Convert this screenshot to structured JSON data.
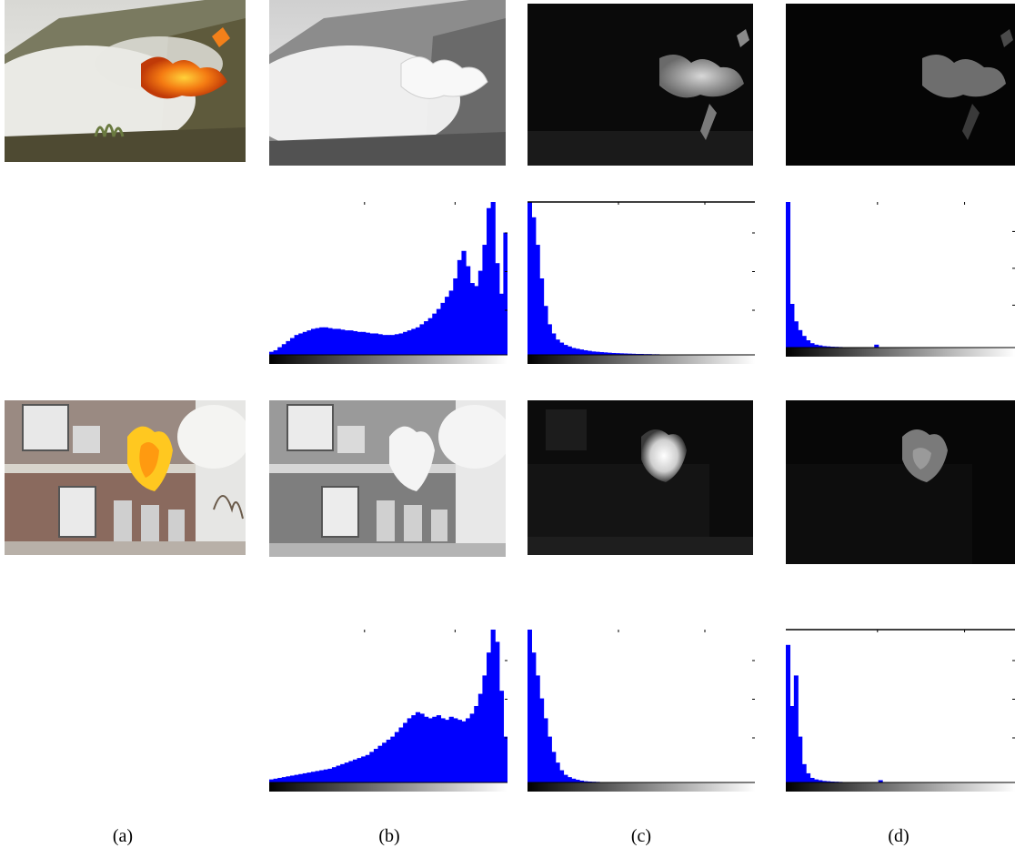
{
  "figure": {
    "captions": [
      "(a)",
      "(b)",
      "(c)",
      "(d)"
    ]
  },
  "palette": {
    "histogram_fill": "#0000ff",
    "axis": "#000000",
    "gradient_dark": "#000000",
    "gradient_light": "#ffffff"
  },
  "rows": [
    {
      "scene": "grassland-fire",
      "original_icon": "grassland-fire-photo",
      "gray_icon": "grassland-fire-gray-image",
      "feature_c_icon": "grassland-fire-feature-map-c",
      "feature_d_icon": "grassland-fire-feature-map-d",
      "hist_b": [
        0.02,
        0.03,
        0.05,
        0.07,
        0.09,
        0.11,
        0.13,
        0.14,
        0.15,
        0.16,
        0.17,
        0.175,
        0.18,
        0.18,
        0.175,
        0.17,
        0.17,
        0.165,
        0.16,
        0.16,
        0.155,
        0.15,
        0.15,
        0.145,
        0.14,
        0.14,
        0.135,
        0.13,
        0.13,
        0.13,
        0.135,
        0.14,
        0.15,
        0.16,
        0.17,
        0.18,
        0.2,
        0.22,
        0.24,
        0.27,
        0.3,
        0.34,
        0.38,
        0.42,
        0.5,
        0.62,
        0.68,
        0.58,
        0.47,
        0.45,
        0.55,
        0.72,
        0.96,
        1.0,
        0.6,
        0.4,
        0.8
      ],
      "hist_c": [
        1.0,
        0.9,
        0.72,
        0.5,
        0.32,
        0.2,
        0.14,
        0.1,
        0.08,
        0.065,
        0.055,
        0.045,
        0.04,
        0.035,
        0.03,
        0.026,
        0.022,
        0.02,
        0.018,
        0.016,
        0.014,
        0.012,
        0.011,
        0.01,
        0.009,
        0.008,
        0.007,
        0.006,
        0.006,
        0.005,
        0.005,
        0.004,
        0.004,
        0.003,
        0.003,
        0.002,
        0.002,
        0.0,
        0.0,
        0.0,
        0.0,
        0.0,
        0.0,
        0.0,
        0.0,
        0.0,
        0.0,
        0.0,
        0.0,
        0.0,
        0.0,
        0.0,
        0.0,
        0.0,
        0.0,
        0.0,
        0.0
      ],
      "hist_d": [
        1.0,
        0.3,
        0.18,
        0.12,
        0.08,
        0.05,
        0.03,
        0.02,
        0.015,
        0.01,
        0.008,
        0.006,
        0.005,
        0.004,
        0.003,
        0.003,
        0.002,
        0.002,
        0.0,
        0.0,
        0.0,
        0.0,
        0.02,
        0.0,
        0.0,
        0.0,
        0.0,
        0.0,
        0.0,
        0.0,
        0.0,
        0.0,
        0.0,
        0.0,
        0.0,
        0.0,
        0.0,
        0.0,
        0.0,
        0.0,
        0.0,
        0.0,
        0.0,
        0.0,
        0.0,
        0.0,
        0.0,
        0.0,
        0.0,
        0.0,
        0.0,
        0.0,
        0.0,
        0.0,
        0.0,
        0.0,
        0.0
      ]
    },
    {
      "scene": "building-fire",
      "original_icon": "building-fire-photo",
      "gray_icon": "building-fire-gray-image",
      "feature_c_icon": "building-fire-feature-map-c",
      "feature_d_icon": "building-fire-feature-map-d",
      "hist_b": [
        0.02,
        0.025,
        0.03,
        0.035,
        0.04,
        0.045,
        0.05,
        0.055,
        0.06,
        0.065,
        0.07,
        0.075,
        0.08,
        0.085,
        0.09,
        0.1,
        0.11,
        0.12,
        0.13,
        0.14,
        0.15,
        0.16,
        0.17,
        0.18,
        0.2,
        0.22,
        0.24,
        0.26,
        0.28,
        0.3,
        0.33,
        0.36,
        0.39,
        0.42,
        0.44,
        0.46,
        0.45,
        0.43,
        0.42,
        0.43,
        0.44,
        0.42,
        0.41,
        0.43,
        0.42,
        0.41,
        0.4,
        0.42,
        0.45,
        0.5,
        0.58,
        0.7,
        0.85,
        1.0,
        0.92,
        0.6,
        0.3
      ],
      "hist_c": [
        1.0,
        0.85,
        0.7,
        0.55,
        0.42,
        0.3,
        0.2,
        0.13,
        0.08,
        0.05,
        0.035,
        0.025,
        0.018,
        0.012,
        0.008,
        0.006,
        0.005,
        0.004,
        0.003,
        0.003,
        0.002,
        0.002,
        0.0,
        0.0,
        0.0,
        0.0,
        0.0,
        0.0,
        0.0,
        0.0,
        0.0,
        0.0,
        0.0,
        0.0,
        0.0,
        0.0,
        0.0,
        0.0,
        0.0,
        0.0,
        0.0,
        0.0,
        0.0,
        0.0,
        0.0,
        0.0,
        0.0,
        0.0,
        0.0,
        0.0,
        0.0,
        0.0,
        0.0,
        0.0,
        0.0,
        0.0,
        0.0
      ],
      "hist_d": [
        0.9,
        0.5,
        0.7,
        0.3,
        0.12,
        0.06,
        0.03,
        0.02,
        0.015,
        0.01,
        0.008,
        0.006,
        0.005,
        0.004,
        0.003,
        0.002,
        0.002,
        0.0,
        0.0,
        0.0,
        0.0,
        0.0,
        0.0,
        0.015,
        0.0,
        0.0,
        0.0,
        0.0,
        0.0,
        0.0,
        0.0,
        0.0,
        0.0,
        0.0,
        0.0,
        0.0,
        0.0,
        0.0,
        0.0,
        0.0,
        0.0,
        0.0,
        0.0,
        0.0,
        0.0,
        0.0,
        0.0,
        0.0,
        0.0,
        0.0,
        0.0,
        0.0,
        0.0,
        0.0,
        0.0,
        0.0,
        0.0
      ]
    }
  ]
}
